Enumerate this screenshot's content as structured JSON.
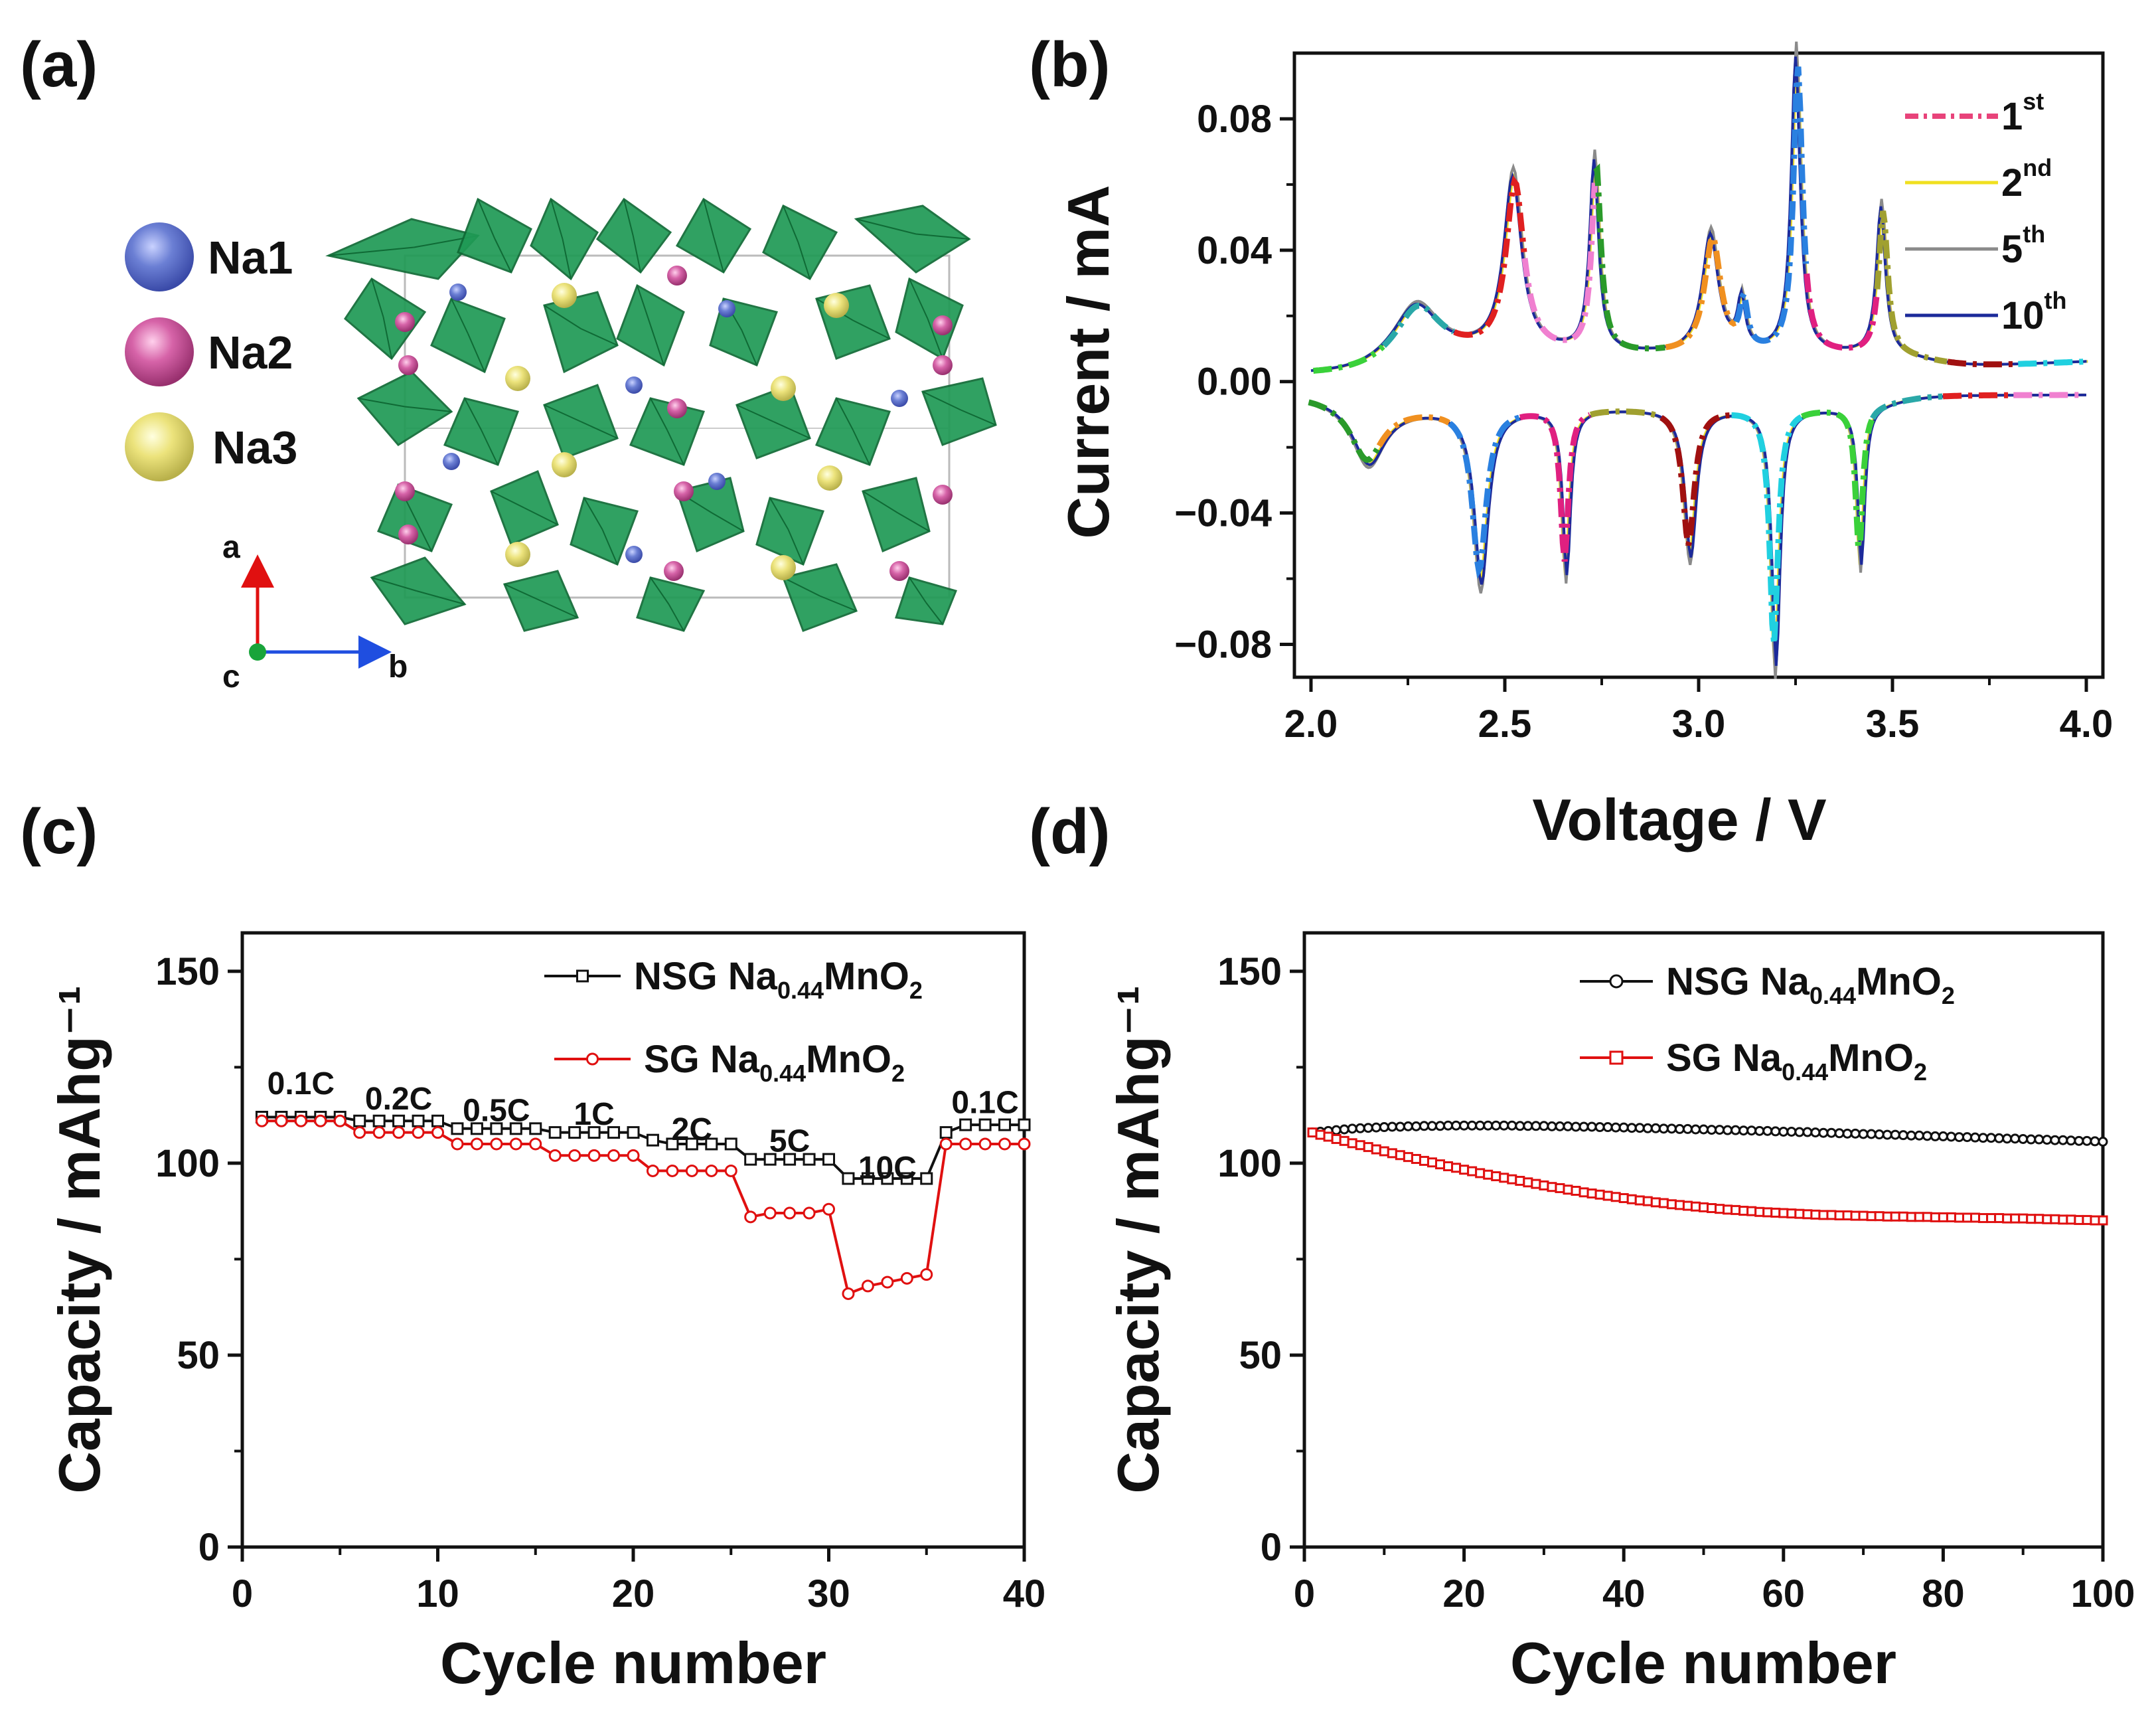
{
  "panels": {
    "a": {
      "label": "(a)",
      "legend": [
        {
          "name": "Na1",
          "color": "#6b7fd4"
        },
        {
          "name": "Na2",
          "color": "#d663a8"
        },
        {
          "name": "Na3",
          "color": "#ece37c"
        }
      ],
      "axes": {
        "a": "a",
        "b": "b",
        "c": "c"
      },
      "colors": {
        "polyhedra": "#1f9a55",
        "polyhedra_dark": "#0f6a35",
        "na1": "#4a5fe0",
        "na2": "#b0309a",
        "na3": "#f4e21c"
      }
    },
    "b": {
      "label": "(b)"
    },
    "c": {
      "label": "(c)"
    },
    "d": {
      "label": "(d)"
    }
  },
  "chart_data": [
    {
      "id": "b",
      "type": "line",
      "title": "",
      "xlabel": "Voltage / V",
      "ylabel": "Current / mA",
      "xlim": [
        2.0,
        4.0
      ],
      "ylim": [
        -0.09,
        0.1
      ],
      "xticks": [
        2.0,
        2.5,
        3.0,
        3.5,
        4.0
      ],
      "xtick_labels": [
        "2.0",
        "2.5",
        "3.0",
        "3.5",
        "4.0"
      ],
      "yticks": [
        -0.08,
        -0.04,
        0.0,
        0.04,
        0.08
      ],
      "ytick_labels": [
        "−0.08",
        "−0.04",
        "0.00",
        "0.04",
        "0.08"
      ],
      "legend": [
        {
          "base": "1",
          "sup": "st",
          "color": "#e8437a",
          "dashed": true
        },
        {
          "base": "2",
          "sup": "nd",
          "color": "#f0e020",
          "dashed": false
        },
        {
          "base": "5",
          "sup": "th",
          "color": "#8a8a8a",
          "dashed": false
        },
        {
          "base": "10",
          "sup": "th",
          "color": "#1c2a9a",
          "dashed": false
        }
      ],
      "anodic_peaks": [
        {
          "v": 2.27,
          "i": 0.016,
          "w": 0.07
        },
        {
          "v": 2.52,
          "i": 0.053,
          "w": 0.028
        },
        {
          "v": 2.73,
          "i": 0.058,
          "w": 0.014
        },
        {
          "v": 3.03,
          "i": 0.036,
          "w": 0.025
        },
        {
          "v": 3.11,
          "i": 0.015,
          "w": 0.012
        },
        {
          "v": 3.25,
          "i": 0.09,
          "w": 0.014
        },
        {
          "v": 3.47,
          "i": 0.045,
          "w": 0.014
        }
      ],
      "cathodic_peaks": [
        {
          "v": 2.15,
          "i": -0.018,
          "w": 0.05
        },
        {
          "v": 2.44,
          "i": -0.053,
          "w": 0.022
        },
        {
          "v": 2.66,
          "i": -0.05,
          "w": 0.012
        },
        {
          "v": 2.98,
          "i": -0.045,
          "w": 0.018
        },
        {
          "v": 3.2,
          "i": -0.078,
          "w": 0.013
        },
        {
          "v": 3.42,
          "i": -0.048,
          "w": 0.011
        }
      ],
      "first_cycle_segment_colors": [
        "#3ad13a",
        "#2aa8a8",
        "#e02020",
        "#f080d0",
        "#2a9a2a",
        "#f09020",
        "#2a80e0",
        "#e02080",
        "#a0a030",
        "#a01010",
        "#20d0e0"
      ]
    },
    {
      "id": "c",
      "type": "line",
      "xlabel": "Cycle number",
      "ylabel": "Capacity / mAhg⁻¹",
      "xlim": [
        0,
        40
      ],
      "ylim": [
        0,
        160
      ],
      "xticks": [
        0,
        10,
        20,
        30,
        40
      ],
      "yticks": [
        0,
        50,
        100,
        150
      ],
      "rates": [
        {
          "label": "0.1C",
          "cycle": 3,
          "cap": 118
        },
        {
          "label": "0.2C",
          "cycle": 8,
          "cap": 114
        },
        {
          "label": "0.5C",
          "cycle": 13,
          "cap": 111
        },
        {
          "label": "1C",
          "cycle": 18,
          "cap": 110
        },
        {
          "label": "2C",
          "cycle": 23,
          "cap": 106
        },
        {
          "label": "5C",
          "cycle": 28,
          "cap": 103
        },
        {
          "label": "10C",
          "cycle": 33,
          "cap": 96
        },
        {
          "label": "0.1C",
          "cycle": 38,
          "cap": 113
        }
      ],
      "series": [
        {
          "name_base": "NSG Na",
          "name_sub": "0.44",
          "name_mid": "MnO",
          "name_sub2": "2",
          "color": "#111111",
          "marker": "square",
          "x": [
            1,
            2,
            3,
            4,
            5,
            6,
            7,
            8,
            9,
            10,
            11,
            12,
            13,
            14,
            15,
            16,
            17,
            18,
            19,
            20,
            21,
            22,
            23,
            24,
            25,
            26,
            27,
            28,
            29,
            30,
            31,
            32,
            33,
            34,
            35,
            36,
            37,
            38,
            39,
            40
          ],
          "values": [
            112,
            112,
            112,
            112,
            112,
            111,
            111,
            111,
            111,
            111,
            109,
            109,
            109,
            109,
            109,
            108,
            108,
            108,
            108,
            108,
            106,
            105,
            105,
            105,
            105,
            101,
            101,
            101,
            101,
            101,
            96,
            96,
            96,
            96,
            96,
            108,
            110,
            110,
            110,
            110
          ]
        },
        {
          "name_base": "SG Na",
          "name_sub": "0.44",
          "name_mid": "MnO",
          "name_sub2": "2",
          "color": "#e01010",
          "marker": "circle",
          "x": [
            1,
            2,
            3,
            4,
            5,
            6,
            7,
            8,
            9,
            10,
            11,
            12,
            13,
            14,
            15,
            16,
            17,
            18,
            19,
            20,
            21,
            22,
            23,
            24,
            25,
            26,
            27,
            28,
            29,
            30,
            31,
            32,
            33,
            34,
            35,
            36,
            37,
            38,
            39,
            40
          ],
          "values": [
            111,
            111,
            111,
            111,
            111,
            108,
            108,
            108,
            108,
            108,
            105,
            105,
            105,
            105,
            105,
            102,
            102,
            102,
            102,
            102,
            98,
            98,
            98,
            98,
            98,
            86,
            87,
            87,
            87,
            88,
            66,
            68,
            69,
            70,
            71,
            105,
            105,
            105,
            105,
            105
          ]
        }
      ]
    },
    {
      "id": "d",
      "type": "line",
      "xlabel": "Cycle number",
      "ylabel": "Capacity / mAhg⁻¹",
      "xlim": [
        0,
        100
      ],
      "ylim": [
        0,
        160
      ],
      "xticks": [
        0,
        20,
        40,
        60,
        80,
        100
      ],
      "yticks": [
        0,
        50,
        100,
        150
      ],
      "series": [
        {
          "name_base": "NSG Na",
          "name_sub": "0.44",
          "name_mid": "MnO",
          "name_sub2": "2",
          "color": "#111111",
          "marker": "circle",
          "x": [
            1,
            2,
            3,
            4,
            5,
            6,
            7,
            8,
            9,
            10,
            11,
            12,
            13,
            14,
            15,
            16,
            17,
            18,
            19,
            20,
            21,
            22,
            23,
            24,
            25,
            26,
            27,
            28,
            29,
            30,
            31,
            32,
            33,
            34,
            35,
            36,
            37,
            38,
            39,
            40,
            41,
            42,
            43,
            44,
            45,
            46,
            47,
            48,
            49,
            50,
            51,
            52,
            53,
            54,
            55,
            56,
            57,
            58,
            59,
            60,
            61,
            62,
            63,
            64,
            65,
            66,
            67,
            68,
            69,
            70,
            71,
            72,
            73,
            74,
            75,
            76,
            77,
            78,
            79,
            80,
            81,
            82,
            83,
            84,
            85,
            86,
            87,
            88,
            89,
            90,
            91,
            92,
            93,
            94,
            95,
            96,
            97,
            98,
            99,
            100
          ],
          "values": [
            108.0,
            108.2,
            108.4,
            108.6,
            108.8,
            109.0,
            109.1,
            109.2,
            109.3,
            109.4,
            109.5,
            109.5,
            109.6,
            109.6,
            109.7,
            109.7,
            109.7,
            109.8,
            109.8,
            109.8,
            109.8,
            109.8,
            109.8,
            109.8,
            109.8,
            109.8,
            109.7,
            109.7,
            109.7,
            109.7,
            109.6,
            109.6,
            109.6,
            109.5,
            109.5,
            109.5,
            109.4,
            109.4,
            109.3,
            109.3,
            109.2,
            109.2,
            109.1,
            109.1,
            109.0,
            109.0,
            108.9,
            108.9,
            108.8,
            108.8,
            108.7,
            108.7,
            108.6,
            108.6,
            108.5,
            108.5,
            108.4,
            108.4,
            108.3,
            108.2,
            108.2,
            108.1,
            108.1,
            108.0,
            107.9,
            107.9,
            107.8,
            107.7,
            107.7,
            107.6,
            107.6,
            107.5,
            107.4,
            107.4,
            107.3,
            107.2,
            107.2,
            107.1,
            107.0,
            107.0,
            106.9,
            106.8,
            106.8,
            106.7,
            106.6,
            106.6,
            106.5,
            106.4,
            106.4,
            106.3,
            106.2,
            106.2,
            106.1,
            106.0,
            106.0,
            105.9,
            105.8,
            105.8,
            105.7,
            105.6
          ]
        },
        {
          "name_base": "SG Na",
          "name_sub": "0.44",
          "name_mid": "MnO",
          "name_sub2": "2",
          "color": "#e01010",
          "marker": "square",
          "x": [
            1,
            2,
            3,
            4,
            5,
            6,
            7,
            8,
            9,
            10,
            11,
            12,
            13,
            14,
            15,
            16,
            17,
            18,
            19,
            20,
            21,
            22,
            23,
            24,
            25,
            26,
            27,
            28,
            29,
            30,
            31,
            32,
            33,
            34,
            35,
            36,
            37,
            38,
            39,
            40,
            41,
            42,
            43,
            44,
            45,
            46,
            47,
            48,
            49,
            50,
            51,
            52,
            53,
            54,
            55,
            56,
            57,
            58,
            59,
            60,
            61,
            62,
            63,
            64,
            65,
            66,
            67,
            68,
            69,
            70,
            71,
            72,
            73,
            74,
            75,
            76,
            77,
            78,
            79,
            80,
            81,
            82,
            83,
            84,
            85,
            86,
            87,
            88,
            89,
            90,
            91,
            92,
            93,
            94,
            95,
            96,
            97,
            98,
            99,
            100
          ],
          "values": [
            108.0,
            107.4,
            106.9,
            106.3,
            105.8,
            105.2,
            104.7,
            104.2,
            103.6,
            103.1,
            102.6,
            102.1,
            101.6,
            101.1,
            100.6,
            100.2,
            99.7,
            99.2,
            98.8,
            98.3,
            97.9,
            97.4,
            97.0,
            96.6,
            96.2,
            95.8,
            95.4,
            95.0,
            94.6,
            94.2,
            93.8,
            93.5,
            93.1,
            92.8,
            92.4,
            92.1,
            91.8,
            91.5,
            91.2,
            90.9,
            90.6,
            90.3,
            90.1,
            89.8,
            89.6,
            89.3,
            89.1,
            88.9,
            88.7,
            88.5,
            88.3,
            88.1,
            87.9,
            87.8,
            87.6,
            87.5,
            87.3,
            87.2,
            87.1,
            87.0,
            86.9,
            86.8,
            86.7,
            86.6,
            86.5,
            86.5,
            86.4,
            86.4,
            86.3,
            86.3,
            86.2,
            86.2,
            86.1,
            86.1,
            86.1,
            86.0,
            86.0,
            86.0,
            85.9,
            85.9,
            85.9,
            85.8,
            85.8,
            85.8,
            85.7,
            85.7,
            85.7,
            85.6,
            85.6,
            85.6,
            85.5,
            85.5,
            85.4,
            85.4,
            85.3,
            85.3,
            85.2,
            85.2,
            85.1,
            85.1
          ]
        }
      ]
    }
  ]
}
